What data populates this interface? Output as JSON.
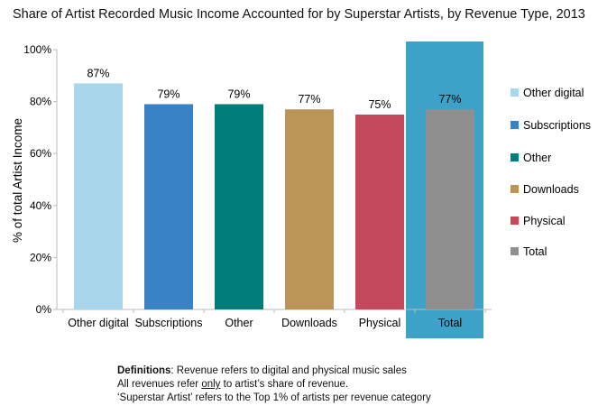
{
  "chart_data": {
    "type": "bar",
    "title": "Share of Artist Recorded Music Income Accounted for by Superstar Artists, by Revenue Type, 2013",
    "xlabel": "",
    "ylabel": "% of total Artist Income",
    "ylim": [
      0,
      100
    ],
    "yticks": [
      "0%",
      "20%",
      "40%",
      "60%",
      "80%",
      "100%"
    ],
    "ytick_values": [
      0,
      20,
      40,
      60,
      80,
      100
    ],
    "categories": [
      "Other digital",
      "Subscriptions",
      "Other",
      "Downloads",
      "Physical",
      "Total"
    ],
    "values": [
      87,
      79,
      79,
      77,
      75,
      77
    ],
    "data_labels": [
      "87%",
      "79%",
      "79%",
      "77%",
      "75%",
      "77%"
    ],
    "colors": [
      "#a9d6ea",
      "#3a82c6",
      "#007d78",
      "#bb9558",
      "#c4495a",
      "#8f8f8f"
    ],
    "highlight_category": "Total",
    "highlight_color": "#3ea2c8",
    "legend": [
      "Other digital",
      "Subscriptions",
      "Other",
      "Downloads",
      "Physical",
      "Total"
    ],
    "legend_position": "right",
    "grid": false
  },
  "notes": {
    "line1_bold": "Definitions",
    "line1_rest": ": Revenue refers to digital and physical music sales",
    "line2_a": "All revenues refer ",
    "line2_u": "only",
    "line2_b": " to artist’s share of revenue.",
    "line3": "‘Superstar Artist’ refers to the Top 1% of artists per revenue category"
  }
}
